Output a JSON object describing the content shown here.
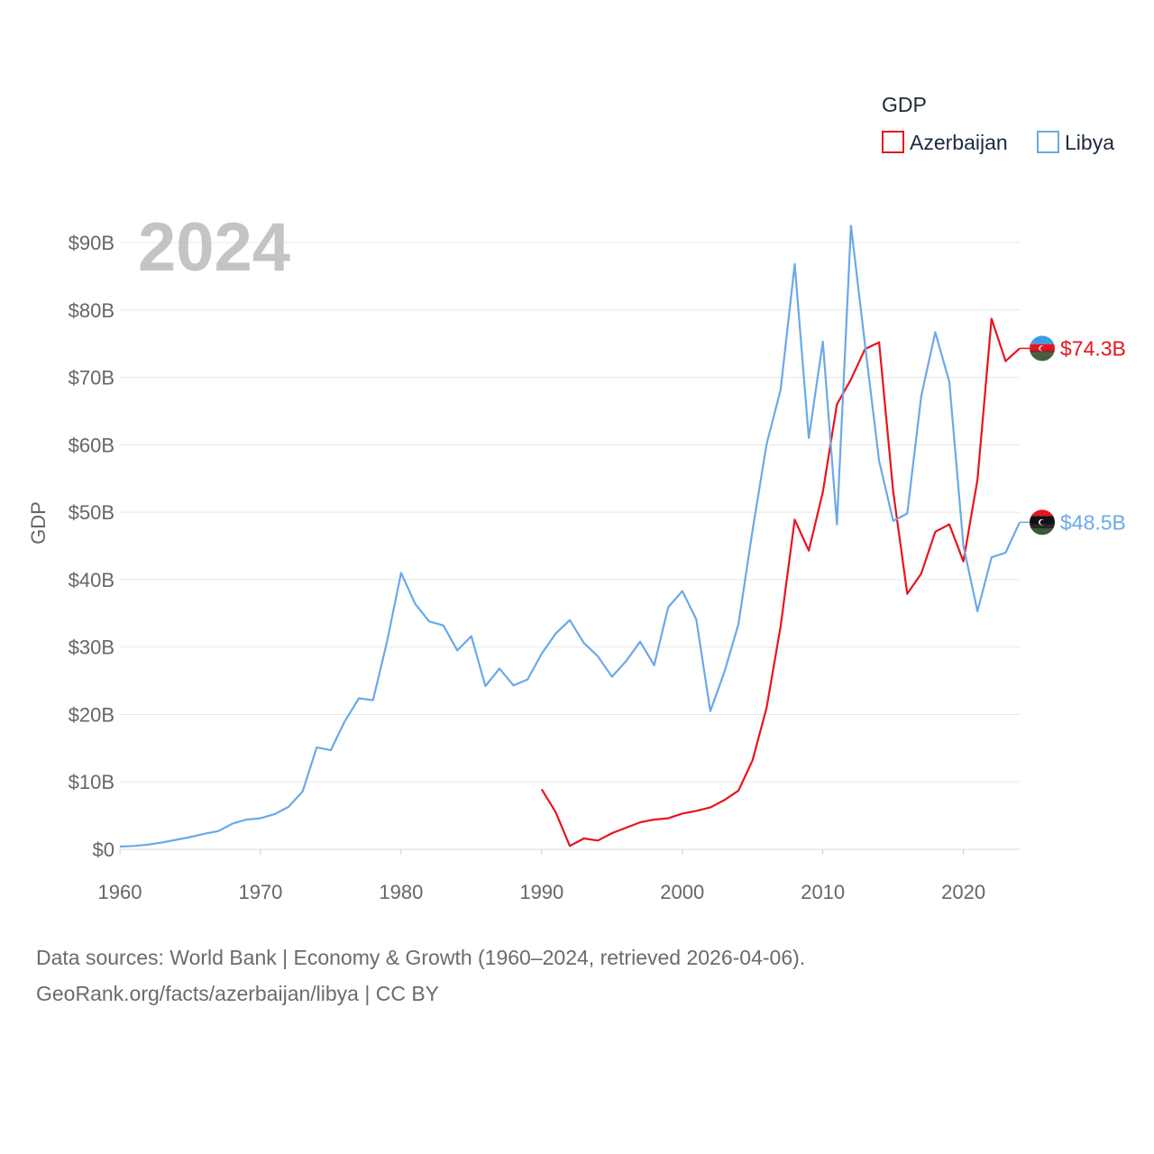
{
  "chart_data": {
    "type": "line",
    "year_label": "2024",
    "ylabel": "GDP",
    "xlabel": "",
    "xlim": [
      1960,
      2024
    ],
    "ylim": [
      0,
      90
    ],
    "x_ticks": [
      1960,
      1970,
      1980,
      1990,
      2000,
      2010,
      2020
    ],
    "y_ticks": [
      {
        "value": 0,
        "label": "$0"
      },
      {
        "value": 10,
        "label": "$10B"
      },
      {
        "value": 20,
        "label": "$20B"
      },
      {
        "value": 30,
        "label": "$30B"
      },
      {
        "value": 40,
        "label": "$40B"
      },
      {
        "value": 50,
        "label": "$50B"
      },
      {
        "value": 60,
        "label": "$60B"
      },
      {
        "value": 70,
        "label": "$70B"
      },
      {
        "value": 80,
        "label": "$80B"
      },
      {
        "value": 90,
        "label": "$90B"
      }
    ],
    "legend": {
      "title": "GDP",
      "position": "top-right"
    },
    "series": [
      {
        "name": "Azerbaijan",
        "color": "#e8141e",
        "end_label": "$74.3B",
        "flag_icon": "azerbaijan-flag-icon",
        "x": [
          1990,
          1991,
          1992,
          1993,
          1994,
          1995,
          1996,
          1997,
          1998,
          1999,
          2000,
          2001,
          2002,
          2003,
          2004,
          2005,
          2006,
          2007,
          2008,
          2009,
          2010,
          2011,
          2012,
          2013,
          2014,
          2015,
          2016,
          2017,
          2018,
          2019,
          2020,
          2021,
          2022,
          2023,
          2024
        ],
        "values": [
          8.9,
          5.5,
          0.5,
          1.6,
          1.3,
          2.4,
          3.2,
          4.0,
          4.4,
          4.6,
          5.3,
          5.7,
          6.2,
          7.3,
          8.7,
          13.2,
          21.0,
          33.1,
          48.9,
          44.3,
          53.0,
          66.0,
          69.7,
          74.2,
          75.2,
          53.1,
          37.9,
          40.9,
          47.1,
          48.2,
          42.7,
          54.8,
          78.7,
          72.4,
          74.3
        ]
      },
      {
        "name": "Libya",
        "color": "#6aa9e9",
        "end_label": "$48.5B",
        "flag_icon": "libya-flag-icon",
        "x": [
          1960,
          1961,
          1962,
          1963,
          1964,
          1965,
          1966,
          1967,
          1968,
          1969,
          1970,
          1971,
          1972,
          1973,
          1974,
          1975,
          1976,
          1977,
          1978,
          1979,
          1980,
          1981,
          1982,
          1983,
          1984,
          1985,
          1986,
          1987,
          1988,
          1989,
          1990,
          1991,
          1992,
          1993,
          1994,
          1995,
          1996,
          1997,
          1998,
          1999,
          2000,
          2001,
          2002,
          2003,
          2004,
          2005,
          2006,
          2007,
          2008,
          2009,
          2010,
          2011,
          2012,
          2013,
          2014,
          2015,
          2016,
          2017,
          2018,
          2019,
          2020,
          2021,
          2022,
          2023,
          2024
        ],
        "values": [
          0.4,
          0.5,
          0.7,
          1.0,
          1.4,
          1.8,
          2.3,
          2.7,
          3.8,
          4.4,
          4.6,
          5.2,
          6.3,
          8.6,
          15.1,
          14.7,
          19.0,
          22.4,
          22.1,
          30.8,
          41.0,
          36.4,
          33.8,
          33.2,
          29.5,
          31.6,
          24.2,
          26.8,
          24.3,
          25.2,
          29.0,
          32.0,
          34.0,
          30.6,
          28.6,
          25.6,
          27.9,
          30.8,
          27.3,
          35.9,
          38.3,
          34.1,
          20.5,
          26.3,
          33.4,
          47.3,
          60.1,
          68.2,
          86.8,
          61.0,
          75.3,
          48.2,
          92.5,
          74.8,
          57.6,
          48.7,
          49.8,
          67.2,
          76.7,
          69.3,
          45.0,
          35.3,
          43.3,
          44.0,
          48.5
        ]
      }
    ]
  },
  "footer": {
    "line1": "Data sources: World Bank | Economy & Growth (1960–2024, retrieved 2026-04-06).",
    "line2": "GeoRank.org/facts/azerbaijan/libya | CC BY"
  }
}
